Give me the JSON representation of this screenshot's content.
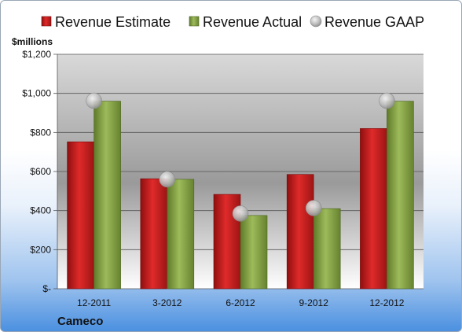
{
  "chart_data": {
    "type": "bar",
    "title": "",
    "ylabel": "$millions",
    "xlabel": "",
    "categories": [
      "12-2011",
      "3-2012",
      "6-2012",
      "9-2012",
      "12-2012"
    ],
    "series": [
      {
        "name": "Revenue Estimate",
        "kind": "bar",
        "color": "#d21f1f",
        "values": [
          752,
          563,
          483,
          585,
          820
        ]
      },
      {
        "name": "Revenue Actual",
        "kind": "bar",
        "color": "#8fae4c",
        "values": [
          960,
          560,
          375,
          410,
          960
        ]
      },
      {
        "name": "Revenue GAAP",
        "kind": "marker",
        "color": "#b9b9b9",
        "values": [
          962,
          560,
          385,
          413,
          962
        ]
      }
    ],
    "ylim": [
      0,
      1200
    ],
    "yticks": [
      0,
      200,
      400,
      600,
      800,
      1000,
      1200
    ],
    "ytick_labels": [
      "$-",
      "$200",
      "$400",
      "$600",
      "$800",
      "$1,000",
      "$1,200"
    ],
    "grid": true,
    "legend_position": "top",
    "company": "Cameco"
  }
}
